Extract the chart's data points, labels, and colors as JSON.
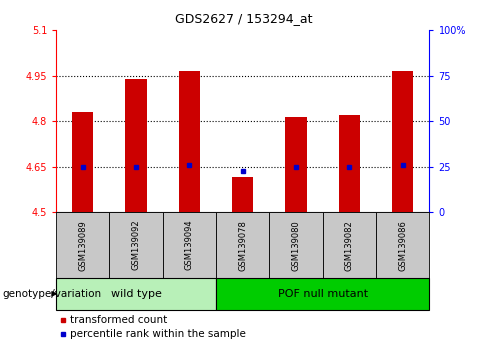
{
  "title": "GDS2627 / 153294_at",
  "samples": [
    "GSM139089",
    "GSM139092",
    "GSM139094",
    "GSM139078",
    "GSM139080",
    "GSM139082",
    "GSM139086"
  ],
  "bar_tops": [
    4.83,
    4.94,
    4.965,
    4.615,
    4.815,
    4.82,
    4.965
  ],
  "bar_bottom": 4.5,
  "percentile_values": [
    4.65,
    4.65,
    4.655,
    4.635,
    4.65,
    4.65,
    4.655
  ],
  "groups": [
    {
      "label": "wild type",
      "indices": [
        0,
        1,
        2
      ]
    },
    {
      "label": "POF null mutant",
      "indices": [
        3,
        4,
        5,
        6
      ]
    }
  ],
  "ylim_left": [
    4.5,
    5.1
  ],
  "ylim_right": [
    0,
    100
  ],
  "yticks_left": [
    4.5,
    4.65,
    4.8,
    4.95,
    5.1
  ],
  "yticks_left_labels": [
    "4.5",
    "4.65",
    "4.8",
    "4.95",
    "5.1"
  ],
  "yticks_right": [
    0,
    25,
    50,
    75,
    100
  ],
  "yticks_right_labels": [
    "0",
    "25",
    "50",
    "75",
    "100%"
  ],
  "hlines": [
    4.65,
    4.8,
    4.95
  ],
  "bar_color": "#CC0000",
  "percentile_color": "#0000CC",
  "bar_width": 0.4,
  "genotype_label": "genotype/variation",
  "legend_items": [
    {
      "label": "transformed count",
      "color": "#CC0000"
    },
    {
      "label": "percentile rank within the sample",
      "color": "#0000CC"
    }
  ],
  "group_box_color": "#C8C8C8",
  "wild_type_green": "#B8F0B8",
  "pof_green": "#00CC00",
  "title_fontsize": 9,
  "tick_fontsize": 7,
  "sample_fontsize": 6,
  "group_fontsize": 8,
  "legend_fontsize": 7.5,
  "genotype_fontsize": 7.5
}
